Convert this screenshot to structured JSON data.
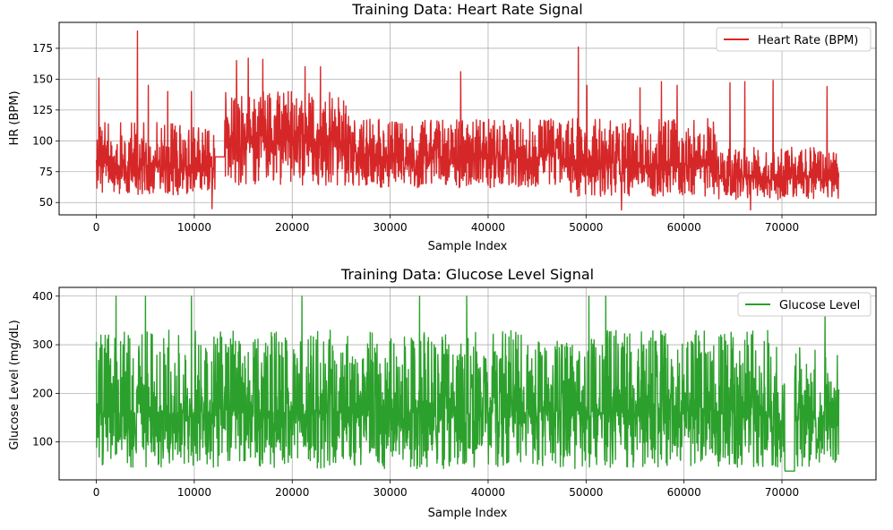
{
  "chart_data": [
    {
      "type": "line",
      "title": "Training Data: Heart Rate Signal",
      "xlabel": "Sample Index",
      "ylabel": "HR (BPM)",
      "xlim": [
        -3800,
        79600
      ],
      "ylim": [
        40,
        196
      ],
      "x_ticks": [
        0,
        10000,
        20000,
        30000,
        40000,
        50000,
        60000,
        70000
      ],
      "y_ticks": [
        50,
        75,
        100,
        125,
        150,
        175
      ],
      "grid": true,
      "legend_position": "upper right",
      "series": [
        {
          "name": "Heart Rate (BPM)",
          "color": "#d62728",
          "x_range": [
            0,
            75800
          ],
          "segments": [
            {
              "x": [
                0,
                12100
              ],
              "low": 56,
              "high": 115,
              "mid": 80
            },
            {
              "x": [
                12100,
                13100
              ],
              "flat": 87
            },
            {
              "x": [
                13100,
                26000
              ],
              "low": 64,
              "high": 140,
              "mid": 100
            },
            {
              "x": [
                26000,
                48000
              ],
              "low": 62,
              "high": 118,
              "mid": 87
            },
            {
              "x": [
                48000,
                63500
              ],
              "low": 55,
              "high": 118,
              "mid": 80
            },
            {
              "x": [
                63500,
                75800
              ],
              "low": 52,
              "high": 95,
              "mid": 70
            }
          ],
          "spikes": [
            {
              "x": 250,
              "y": 151
            },
            {
              "x": 4200,
              "y": 189
            },
            {
              "x": 5300,
              "y": 145
            },
            {
              "x": 7300,
              "y": 140
            },
            {
              "x": 9700,
              "y": 140
            },
            {
              "x": 14300,
              "y": 165
            },
            {
              "x": 15500,
              "y": 167
            },
            {
              "x": 17000,
              "y": 166
            },
            {
              "x": 21300,
              "y": 160
            },
            {
              "x": 22900,
              "y": 160
            },
            {
              "x": 37200,
              "y": 156
            },
            {
              "x": 49200,
              "y": 176
            },
            {
              "x": 50100,
              "y": 145
            },
            {
              "x": 55500,
              "y": 143
            },
            {
              "x": 57700,
              "y": 148
            },
            {
              "x": 59300,
              "y": 145
            },
            {
              "x": 64700,
              "y": 147
            },
            {
              "x": 66200,
              "y": 148
            },
            {
              "x": 69100,
              "y": 149
            },
            {
              "x": 74600,
              "y": 144
            },
            {
              "x": 53600,
              "y": 44
            },
            {
              "x": 11800,
              "y": 45
            },
            {
              "x": 66800,
              "y": 44
            }
          ]
        }
      ]
    },
    {
      "type": "line",
      "title": "Training Data: Glucose Level Signal",
      "xlabel": "Sample Index",
      "ylabel": "Glucose Level (mg/dL)",
      "xlim": [
        -3800,
        79600
      ],
      "ylim": [
        22,
        418
      ],
      "x_ticks": [
        0,
        10000,
        20000,
        30000,
        40000,
        50000,
        60000,
        70000
      ],
      "y_ticks": [
        100,
        200,
        300,
        400
      ],
      "grid": true,
      "legend_position": "upper right",
      "series": [
        {
          "name": "Glucose Level",
          "color": "#2ca02c",
          "x_range": [
            0,
            75800
          ],
          "segments": [
            {
              "x": [
                0,
                70300
              ],
              "low": 45,
              "high": 330,
              "mid": 160
            },
            {
              "x": [
                70300,
                71300
              ],
              "flat": 40
            },
            {
              "x": [
                71300,
                75800
              ],
              "low": 50,
              "high": 300,
              "mid": 150
            }
          ],
          "spikes": [
            {
              "x": 2000,
              "y": 400
            },
            {
              "x": 5000,
              "y": 400
            },
            {
              "x": 9700,
              "y": 400
            },
            {
              "x": 21000,
              "y": 400
            },
            {
              "x": 33000,
              "y": 400
            },
            {
              "x": 37800,
              "y": 400
            },
            {
              "x": 50300,
              "y": 400
            },
            {
              "x": 52000,
              "y": 400
            },
            {
              "x": 74400,
              "y": 370
            }
          ]
        }
      ]
    }
  ]
}
